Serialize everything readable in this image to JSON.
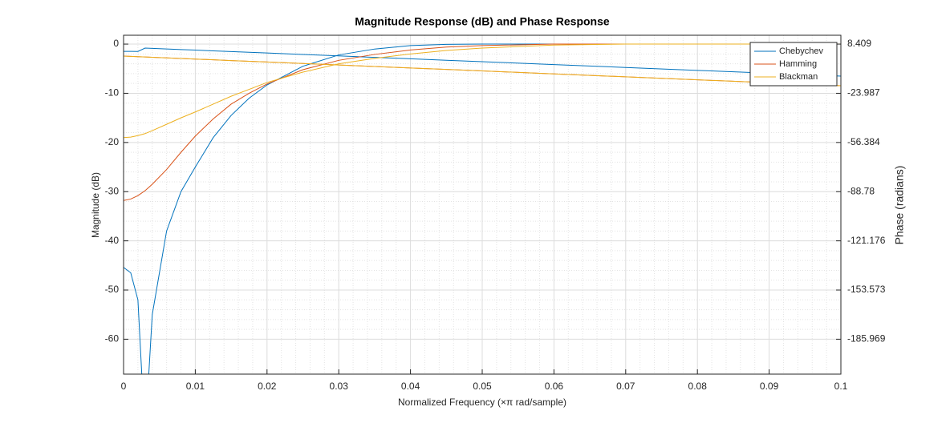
{
  "chart_data": {
    "type": "line",
    "title": "Magnitude Response (dB) and Phase Response",
    "x_label": "Normalized Frequency (×π rad/sample)",
    "y_label": "Magnitude (dB)",
    "y2_label": "Phase (radians)",
    "x": [
      0,
      0.001,
      0.002,
      0.003,
      0.004,
      0.006,
      0.008,
      0.01,
      0.0125,
      0.015,
      0.0175,
      0.02,
      0.025,
      0.03,
      0.035,
      0.04,
      0.045,
      0.05,
      0.06,
      0.07,
      0.08,
      0.09,
      0.1
    ],
    "series": [
      {
        "name": "Chebychev",
        "color": "#0072bd",
        "values": [
          -45.4,
          -46.5,
          -52,
          -80,
          -55,
          -38,
          -30,
          -25,
          -19,
          -14.5,
          -11,
          -8.3,
          -4.5,
          -2.2,
          -1,
          -0.3,
          -0.05,
          0,
          0,
          0,
          0,
          0,
          0
        ],
        "phase": [
          3.65,
          3.6,
          3.55,
          5.78,
          5.59,
          5.21,
          4.83,
          4.45,
          3.97,
          3.49,
          3.02,
          2.54,
          1.59,
          0.64,
          -0.32,
          -1.27,
          -2.22,
          -3.17,
          -5.08,
          -6.98,
          -8.89,
          -10.79,
          -12.7
        ]
      },
      {
        "name": "Hamming",
        "color": "#d95319",
        "values": [
          -31.8,
          -31.5,
          -30.8,
          -29.8,
          -28.5,
          -25.5,
          -22,
          -18.7,
          -15.2,
          -12.2,
          -10,
          -8.1,
          -5.2,
          -3.3,
          -2.1,
          -1.2,
          -0.6,
          -0.3,
          0,
          0,
          0,
          0,
          0
        ],
        "phase": [
          0.5,
          0.31,
          0.11,
          -0.09,
          -0.28,
          -0.67,
          -1.06,
          -1.45,
          -1.94,
          -2.43,
          -2.91,
          -3.4,
          -4.38,
          -5.35,
          -6.33,
          -7.3,
          -8.28,
          -9.25,
          -11.2,
          -13.15,
          -15.1,
          -17.05,
          -19.0
        ]
      },
      {
        "name": "Blackman",
        "color": "#edb120",
        "values": [
          -19,
          -18.9,
          -18.6,
          -18.2,
          -17.6,
          -16.3,
          -15,
          -13.8,
          -12.2,
          -10.6,
          -9.2,
          -7.8,
          -5.7,
          -4,
          -2.9,
          -2,
          -1.3,
          -0.8,
          -0.2,
          0,
          0,
          0,
          0
        ],
        "phase": [
          0.5,
          0.31,
          0.11,
          -0.09,
          -0.28,
          -0.67,
          -1.06,
          -1.45,
          -1.94,
          -2.43,
          -2.91,
          -3.4,
          -4.38,
          -5.35,
          -6.33,
          -7.3,
          -8.28,
          -9.25,
          -11.2,
          -13.15,
          -15.1,
          -17.05,
          -19.0
        ]
      }
    ],
    "xlim": [
      0,
      0.1
    ],
    "xticks": [
      0,
      0.01,
      0.02,
      0.03,
      0.04,
      0.05,
      0.06,
      0.07,
      0.08,
      0.09,
      0.1
    ],
    "ylim": [
      -67.1,
      1.8
    ],
    "yticks": [
      -60,
      -50,
      -40,
      -30,
      -20,
      -10,
      0
    ],
    "y2lim": [
      -208.97,
      14.24
    ],
    "y2ticks": [
      -185.969,
      -153.573,
      -121.176,
      -88.78,
      -56.384,
      -23.987,
      8.409
    ],
    "grid": true,
    "minor_grid": true,
    "legend": "upper right"
  }
}
